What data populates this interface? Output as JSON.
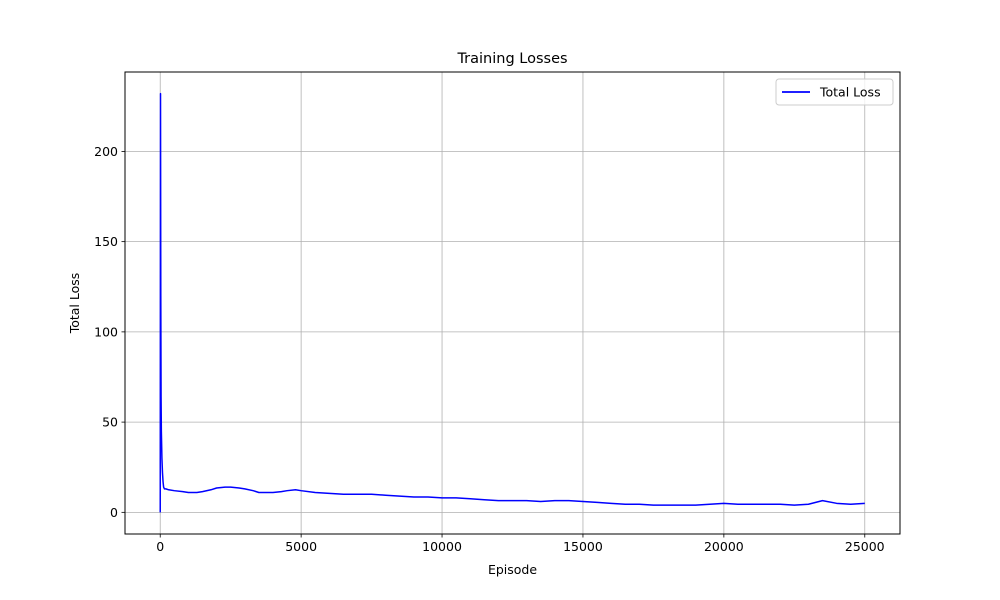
{
  "chart_data": {
    "type": "line",
    "title": "Training Losses",
    "xlabel": "Episode",
    "ylabel": "Total Loss",
    "xlim": [
      -1250,
      26250
    ],
    "ylim": [
      -12,
      244
    ],
    "xticks": [
      0,
      5000,
      10000,
      15000,
      20000,
      25000
    ],
    "yticks": [
      0,
      50,
      100,
      150,
      200
    ],
    "grid": true,
    "legend_position": "top-right",
    "series": [
      {
        "name": "Total Loss",
        "color": "#0000ff",
        "x": [
          0,
          10,
          20,
          30,
          40,
          60,
          80,
          100,
          120,
          150,
          200,
          300,
          500,
          800,
          1000,
          1300,
          1500,
          1800,
          2000,
          2300,
          2500,
          2800,
          3000,
          3300,
          3500,
          3800,
          4000,
          4300,
          4500,
          4800,
          5000,
          5500,
          6000,
          6500,
          7000,
          7500,
          8000,
          8500,
          9000,
          9500,
          10000,
          10500,
          11000,
          11500,
          12000,
          12500,
          13000,
          13500,
          14000,
          14500,
          15000,
          15500,
          16000,
          16500,
          17000,
          17500,
          18000,
          18500,
          19000,
          19500,
          20000,
          20500,
          21000,
          21500,
          22000,
          22500,
          23000,
          23500,
          24000,
          24500,
          25000
        ],
        "y": [
          0,
          232,
          120,
          64,
          45,
          30,
          22,
          17,
          14,
          13,
          13,
          12.5,
          12,
          11.5,
          11,
          11,
          11.5,
          12.5,
          13.5,
          14,
          14,
          13.5,
          13,
          12,
          11,
          11,
          11,
          11.5,
          12,
          12.5,
          12,
          11,
          10.5,
          10,
          10,
          10,
          9.5,
          9,
          8.5,
          8.5,
          8,
          8,
          7.5,
          7,
          6.5,
          6.5,
          6.5,
          6,
          6.5,
          6.5,
          6,
          5.5,
          5,
          4.5,
          4.5,
          4,
          4,
          4,
          4,
          4.5,
          5,
          4.5,
          4.5,
          4.5,
          4.5,
          4,
          4.5,
          6.5,
          5,
          4.5,
          5
        ]
      }
    ]
  }
}
